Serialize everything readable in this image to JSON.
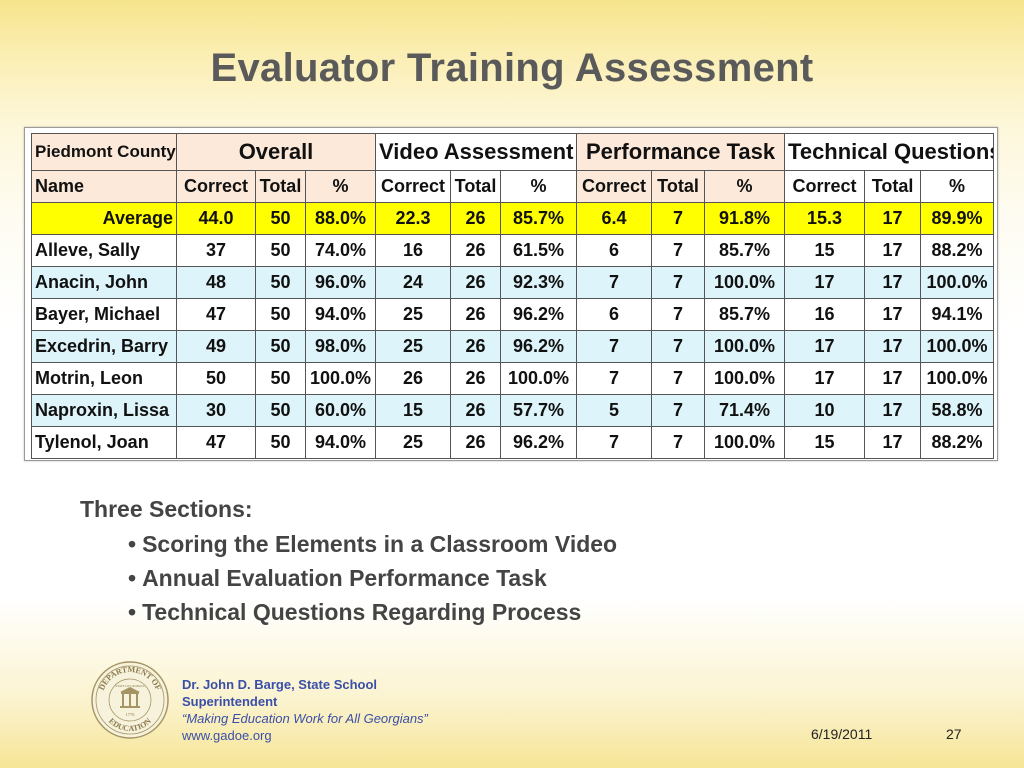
{
  "title": "Evaluator Training Assessment",
  "table": {
    "county": "Piedmont County",
    "sections": [
      "Overall",
      "Video Assessment",
      "Performance Task",
      "Technical Questions"
    ],
    "name_header": "Name",
    "sub_headers": [
      "Correct",
      "Total",
      "%"
    ],
    "average": {
      "label": "Average",
      "values": [
        "44.0",
        "50",
        "88.0%",
        "22.3",
        "26",
        "85.7%",
        "6.4",
        "7",
        "91.8%",
        "15.3",
        "17",
        "89.9%"
      ]
    },
    "rows": [
      {
        "name": "Alleve, Sally",
        "values": [
          "37",
          "50",
          "74.0%",
          "16",
          "26",
          "61.5%",
          "6",
          "7",
          "85.7%",
          "15",
          "17",
          "88.2%"
        ]
      },
      {
        "name": "Anacin, John",
        "values": [
          "48",
          "50",
          "96.0%",
          "24",
          "26",
          "92.3%",
          "7",
          "7",
          "100.0%",
          "17",
          "17",
          "100.0%"
        ]
      },
      {
        "name": "Bayer, Michael",
        "values": [
          "47",
          "50",
          "94.0%",
          "25",
          "26",
          "96.2%",
          "6",
          "7",
          "85.7%",
          "16",
          "17",
          "94.1%"
        ]
      },
      {
        "name": "Excedrin, Barry",
        "values": [
          "49",
          "50",
          "98.0%",
          "25",
          "26",
          "96.2%",
          "7",
          "7",
          "100.0%",
          "17",
          "17",
          "100.0%"
        ]
      },
      {
        "name": "Motrin, Leon",
        "values": [
          "50",
          "50",
          "100.0%",
          "26",
          "26",
          "100.0%",
          "7",
          "7",
          "100.0%",
          "17",
          "17",
          "100.0%"
        ]
      },
      {
        "name": "Naproxin, Lissa",
        "values": [
          "30",
          "50",
          "60.0%",
          "15",
          "26",
          "57.7%",
          "5",
          "7",
          "71.4%",
          "10",
          "17",
          "58.8%"
        ]
      },
      {
        "name": "Tylenol, Joan",
        "values": [
          "47",
          "50",
          "94.0%",
          "25",
          "26",
          "96.2%",
          "7",
          "7",
          "100.0%",
          "15",
          "17",
          "88.2%"
        ]
      }
    ]
  },
  "sections_text": {
    "heading": "Three Sections:",
    "items": [
      "Scoring the Elements in a Classroom Video",
      "Annual Evaluation Performance Task",
      "Technical Questions Regarding Process"
    ]
  },
  "seal": {
    "top_text": "DEPARTMENT OF",
    "bottom_text": "EDUCATION",
    "inner_text": "STATE OF GEORGIA",
    "year": "1776"
  },
  "footer": {
    "line1": "Dr. John D. Barge, State School",
    "line2": "Superintendent",
    "tagline": "“Making Education Work for All Georgians”",
    "url": "www.gadoe.org"
  },
  "slide": {
    "date": "6/19/2011",
    "number": "27"
  },
  "colors": {
    "peach": "#fde9d9",
    "light_blue": "#ddf4fa",
    "average_yellow": "#ffff00",
    "footer_blue": "#3a4fa8"
  }
}
